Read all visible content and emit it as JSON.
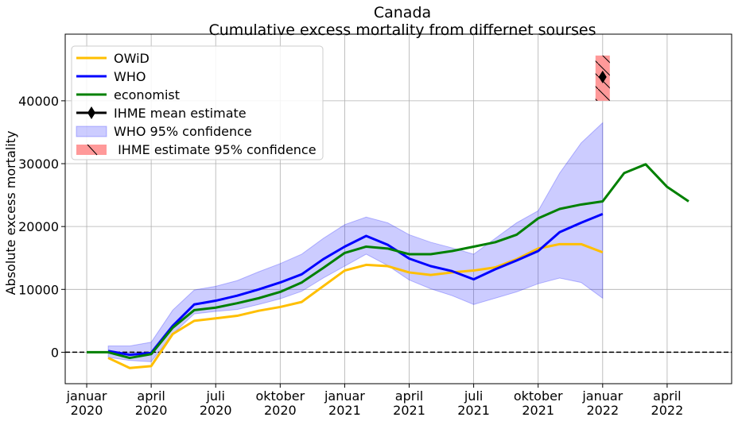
{
  "chart_data": {
    "type": "line",
    "title": "Canada",
    "subtitle": "Cumulative excess mortality from differnet sourses",
    "y_label": "Absolute excess mortality",
    "x": [
      "2020-01",
      "2020-02",
      "2020-03",
      "2020-04",
      "2020-05",
      "2020-06",
      "2020-07",
      "2020-08",
      "2020-09",
      "2020-10",
      "2020-11",
      "2020-12",
      "2021-01",
      "2021-02",
      "2021-03",
      "2021-04",
      "2021-05",
      "2021-06",
      "2021-07",
      "2021-08",
      "2021-09",
      "2021-10",
      "2021-11",
      "2021-12",
      "2022-01",
      "2022-02",
      "2022-03",
      "2022-04",
      "2022-05"
    ],
    "xlim": [
      "2019-12",
      "2022-07"
    ],
    "xticks": [
      {
        "value": "2020-01",
        "label": [
          "januar",
          "2020"
        ]
      },
      {
        "value": "2020-04",
        "label": [
          "april",
          "2020"
        ]
      },
      {
        "value": "2020-07",
        "label": [
          "juli",
          "2020"
        ]
      },
      {
        "value": "2020-10",
        "label": [
          "oktober",
          "2020"
        ]
      },
      {
        "value": "2021-01",
        "label": [
          "januar",
          "2021"
        ]
      },
      {
        "value": "2021-04",
        "label": [
          "april",
          "2021"
        ]
      },
      {
        "value": "2021-07",
        "label": [
          "juli",
          "2021"
        ]
      },
      {
        "value": "2021-10",
        "label": [
          "oktober",
          "2021"
        ]
      },
      {
        "value": "2022-01",
        "label": [
          "januar",
          "2022"
        ]
      },
      {
        "value": "2022-04",
        "label": [
          "april",
          "2022"
        ]
      }
    ],
    "ylim": [
      -5000,
      50600
    ],
    "yticks": [
      0,
      10000,
      20000,
      30000,
      40000
    ],
    "grid": true,
    "reference_line": 0,
    "legend": "upper left",
    "series": [
      {
        "name": "OWiD",
        "color": "#ffbf00",
        "values": [
          null,
          -900,
          -2500,
          -2200,
          2900,
          5000,
          5400,
          5800,
          6600,
          7200,
          8000,
          10500,
          13000,
          13900,
          13700,
          12700,
          12300,
          12700,
          13000,
          13500,
          14800,
          16500,
          17200,
          17200,
          15900,
          null,
          null,
          null,
          null
        ]
      },
      {
        "name": "WHO",
        "color": "#0000ff",
        "values": [
          null,
          200,
          -400,
          -100,
          4200,
          7600,
          8200,
          9000,
          10000,
          11100,
          12400,
          14800,
          16800,
          18500,
          17100,
          14900,
          13700,
          12900,
          11600,
          13200,
          14600,
          16100,
          19100,
          20600,
          22000,
          null,
          null,
          null,
          null
        ]
      },
      {
        "name": "economist",
        "color": "#008000",
        "values": [
          0,
          0,
          -900,
          -300,
          3900,
          6700,
          7100,
          7800,
          8600,
          9600,
          11100,
          13400,
          15800,
          16800,
          16500,
          15600,
          15600,
          16100,
          16800,
          17500,
          18700,
          21300,
          22800,
          23500,
          24000,
          28500,
          29900,
          26300,
          24000
        ]
      }
    ],
    "point": {
      "name": "IHME mean estimate",
      "color": "#000000",
      "x": "2022-01",
      "value": 43800
    },
    "band": {
      "name": "WHO 95% confidence",
      "color": "#0000ff",
      "upper": [
        null,
        1000,
        1000,
        1600,
        6700,
        9900,
        10500,
        11400,
        12800,
        14100,
        15600,
        18100,
        20300,
        21500,
        20600,
        18700,
        17500,
        16600,
        15600,
        18100,
        20600,
        22500,
        28500,
        33300,
        36500,
        null,
        null,
        null,
        null
      ],
      "lower": [
        null,
        -800,
        -1300,
        -1500,
        2900,
        6100,
        6500,
        6800,
        7600,
        8500,
        9700,
        11800,
        13700,
        15600,
        13800,
        11500,
        10100,
        9000,
        7600,
        8600,
        9600,
        10900,
        11800,
        11100,
        8600,
        null,
        null,
        null,
        null
      ]
    },
    "interval": {
      "name": " IHME estimate 95% confidence",
      "color": "#ff9999",
      "x": "2022-01",
      "lower": 40000,
      "upper": 47200
    }
  }
}
